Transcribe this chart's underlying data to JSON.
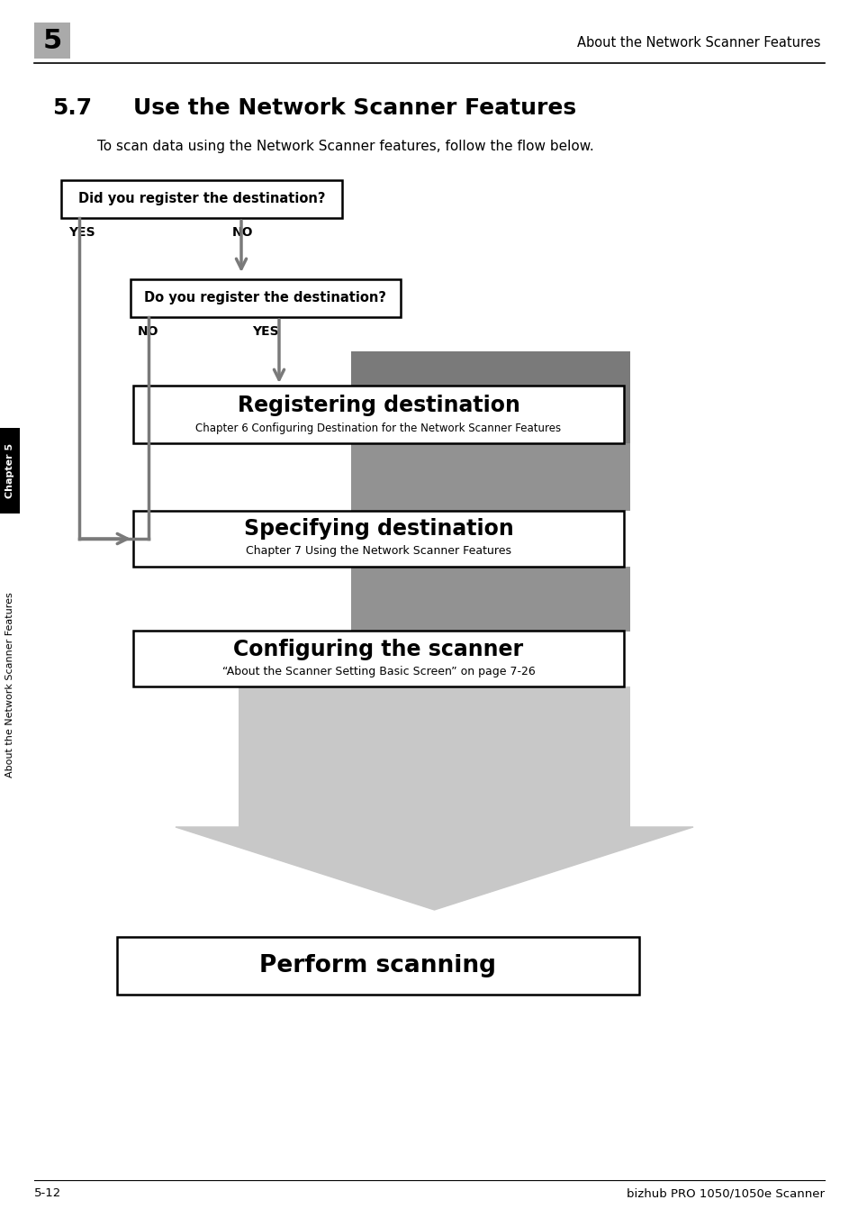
{
  "page_title": "About the Network Scanner Features",
  "chapter_num": "5",
  "section_num": "5.7",
  "section_title": "Use the Network Scanner Features",
  "intro_text": "To scan data using the Network Scanner features, follow the flow below.",
  "box1_text": "Did you register the destination?",
  "box2_text": "Do you register the destination?",
  "yes_label": "YES",
  "no_label": "NO",
  "reg_dest_title": "Registering destination",
  "reg_dest_sub": "Chapter 6 Configuring Destination for the Network Scanner Features",
  "spec_dest_title": "Specifying destination",
  "spec_dest_sub": "Chapter 7 Using the Network Scanner Features",
  "config_title": "Configuring the scanner",
  "config_sub": "“About the Scanner Setting Basic Screen” on page 7-26",
  "perform_title": "Perform scanning",
  "footer_left": "5-12",
  "footer_right": "bizhub PRO 1050/1050e Scanner",
  "sidebar_text": "About the Network Scanner Features",
  "chapter_sidebar": "Chapter 5",
  "dark_gray": "#7a7a7a",
  "medium_gray": "#929292",
  "light_gray": "#c8c8c8",
  "bg_color": "#ffffff",
  "arrow_color": "#7a7a7a"
}
